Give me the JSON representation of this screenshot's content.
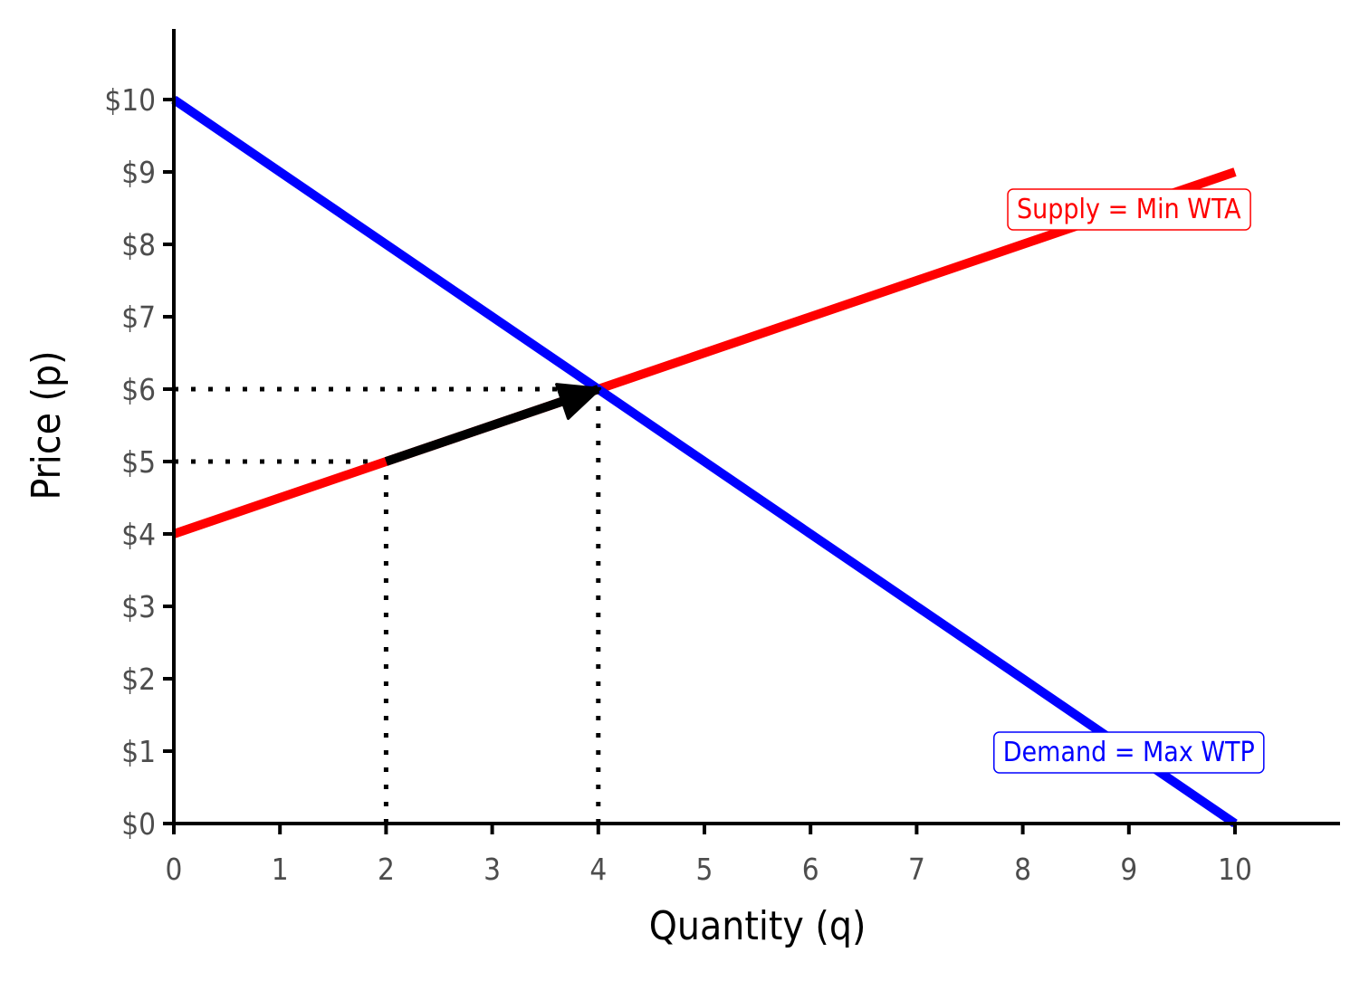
{
  "chart_data": {
    "type": "line",
    "title": "",
    "xlabel": "Quantity (q)",
    "ylabel": "Price (p)",
    "xlim": [
      0,
      11
    ],
    "ylim": [
      0,
      11
    ],
    "x_ticks": [
      0,
      1,
      2,
      3,
      4,
      5,
      6,
      7,
      8,
      9,
      10
    ],
    "y_ticks": [
      0,
      1,
      2,
      3,
      4,
      5,
      6,
      7,
      8,
      9,
      10
    ],
    "x_tick_labels": [
      "0",
      "1",
      "2",
      "3",
      "4",
      "5",
      "6",
      "7",
      "8",
      "9",
      "10"
    ],
    "y_tick_labels": [
      "$0",
      "$1",
      "$2",
      "$3",
      "$4",
      "$5",
      "$6",
      "$7",
      "$8",
      "$9",
      "$10"
    ],
    "grid": false,
    "series": [
      {
        "name": "Demand = Max WTP",
        "color": "#0000ff",
        "points": [
          [
            0,
            10
          ],
          [
            10,
            0
          ]
        ]
      },
      {
        "name": "Supply = Min WTA",
        "color": "#ff0000",
        "points": [
          [
            0,
            4
          ],
          [
            10,
            9
          ]
        ]
      }
    ],
    "curve_labels": [
      {
        "text": "Supply = Min WTA",
        "color": "#ff0000",
        "x": 9,
        "y": 8.5
      },
      {
        "text": "Demand = Max WTP",
        "color": "#0000ff",
        "x": 9,
        "y": 1
      }
    ],
    "arrow": {
      "color": "#000000",
      "from": [
        2,
        5
      ],
      "to": [
        4,
        6
      ]
    },
    "reference_lines": [
      {
        "type": "horizontal",
        "y": 6,
        "x_from": 0,
        "x_to": 4
      },
      {
        "type": "horizontal",
        "y": 5,
        "x_from": 0,
        "x_to": 2
      },
      {
        "type": "vertical",
        "x": 2,
        "y_from": 0,
        "y_to": 5
      },
      {
        "type": "vertical",
        "x": 4,
        "y_from": 0,
        "y_to": 6
      }
    ]
  }
}
